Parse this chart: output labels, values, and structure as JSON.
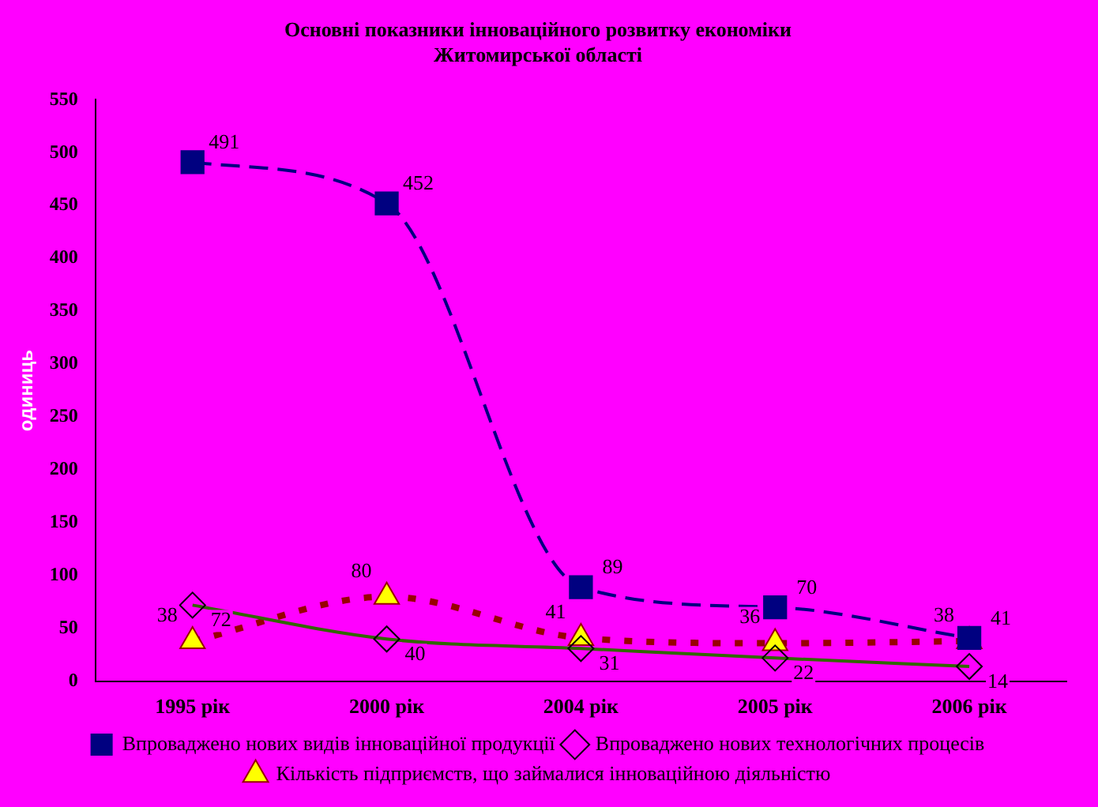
{
  "chart_data": {
    "type": "line",
    "title": [
      "Основні показники інноваційного розвитку економіки",
      "Житомирської області"
    ],
    "ylabel": "одиниць",
    "categories": [
      "1995 рік",
      "2000 рік",
      "2004 рік",
      "2005 рік",
      "2006 рік"
    ],
    "series": [
      {
        "name": "Впроваджено нових видів інноваційної продукції",
        "color": "#000080",
        "values": [
          491,
          452,
          89,
          70,
          41
        ],
        "marker": "square",
        "line_style": "dashed"
      },
      {
        "name": "Впроваджено нових технологічних процесів",
        "color": "#336600",
        "values": [
          72,
          40,
          31,
          22,
          14
        ],
        "marker": "diamond",
        "line_style": "solid"
      },
      {
        "name": "Кількість підприємств, що займалися інноваційною діяльністю",
        "color": "#990000",
        "values": [
          38,
          80,
          41,
          36,
          38
        ],
        "marker": "triangle",
        "line_style": "dotted"
      }
    ],
    "ylim": [
      0,
      550
    ],
    "yticks": [
      0,
      50,
      100,
      150,
      200,
      250,
      300,
      350,
      400,
      450,
      500,
      550
    ],
    "grid": false,
    "legend": "bottom",
    "data_labels": true
  }
}
